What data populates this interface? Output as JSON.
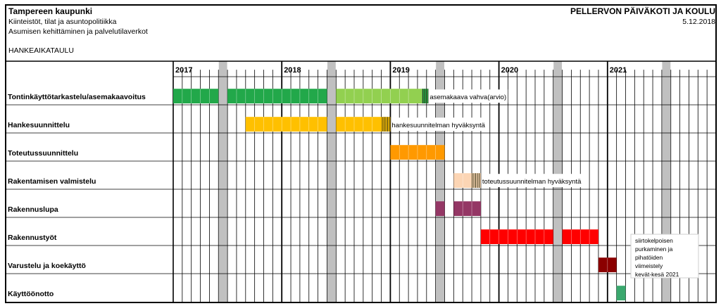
{
  "header": {
    "org": "Tampereen kaupunki",
    "line1": "Kiinteistöt, tilat ja asuntopolitiikka",
    "line2": "Asumisen kehittäminen ja palvelutilaverkot",
    "doc_type": "HANKEAIKATAULU",
    "project": "PELLERVON PÄIVÄKOTI JA KOULU",
    "date": "5.12.2018"
  },
  "years": [
    "2017",
    "2018",
    "2019",
    "2020",
    "2021"
  ],
  "chart_data": {
    "type": "table",
    "months_total": 60,
    "start_year": 2017,
    "columns": [
      "2017",
      "2018",
      "2019",
      "2020",
      "2021"
    ],
    "rows": [
      {
        "name": "Tontinkäyttötarkastelu/asemakaavoitus",
        "bars": [
          {
            "start": 0,
            "months": 5,
            "color": "#22a84a"
          },
          {
            "start": 6,
            "months": 11,
            "color": "#22a84a"
          },
          {
            "start": 18,
            "months": 9.5,
            "color": "#92d050"
          },
          {
            "start": 27.5,
            "months": 0.7,
            "color": "#22a84a",
            "hatch": true
          }
        ],
        "note": "asemakaava vahva(arvio)"
      },
      {
        "name": "Hankesuunnittelu",
        "bars": [
          {
            "start": 8,
            "months": 9,
            "color": "#ffc000"
          },
          {
            "start": 18,
            "months": 5,
            "color": "#ffc000"
          },
          {
            "start": 23,
            "months": 1,
            "color": "#ffc000",
            "hatch": true
          }
        ],
        "note": "hankesuunnitelman hyväksyntä"
      },
      {
        "name": "Toteutussuunnittelu",
        "bars": [
          {
            "start": 24,
            "months": 6,
            "color": "#ff9900"
          }
        ],
        "note": ""
      },
      {
        "name": "Rakentamisen  valmistelu",
        "bars": [
          {
            "start": 31,
            "months": 2,
            "color": "#fcd5b4"
          },
          {
            "start": 33,
            "months": 1,
            "color": "#fcd5b4",
            "hatch": true
          }
        ],
        "note": "toteutussuunnitelman hyväksyntä"
      },
      {
        "name": "Rakennuslupa",
        "bars": [
          {
            "start": 29,
            "months": 1,
            "color": "#943765"
          },
          {
            "start": 31,
            "months": 3,
            "color": "#943765"
          }
        ],
        "note": ""
      },
      {
        "name": "Rakennustyöt",
        "bars": [
          {
            "start": 34,
            "months": 8,
            "color": "#ff0000"
          },
          {
            "start": 43,
            "months": 4,
            "color": "#ff0000"
          }
        ],
        "note": ""
      },
      {
        "name": "Varustelu ja koekäyttö",
        "bars": [
          {
            "start": 47,
            "months": 2,
            "color": "#8b0000"
          }
        ],
        "note": ""
      },
      {
        "name": "Käyttöönotto",
        "bars": [
          {
            "start": 49,
            "months": 1,
            "color": "#3aa86e"
          }
        ],
        "note": ""
      }
    ],
    "grey_months": [
      5,
      17,
      29,
      42,
      54
    ],
    "callout": "siirtokelpoisen purkaminen ja pihatöiden viimeistely kevät-kesä 2021"
  }
}
